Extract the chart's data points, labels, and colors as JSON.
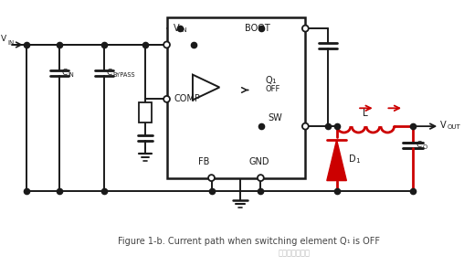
{
  "title": "Figure 1-b. Current path when switching element Q₁ is OFF",
  "bg_color": "#ffffff",
  "black": "#1a1a1a",
  "red": "#cc0000",
  "gray_text": "#555555",
  "caption": "Figure 1-b. Current path when switching element Q₁ is OFF",
  "watermark": "硬件万人为什么"
}
